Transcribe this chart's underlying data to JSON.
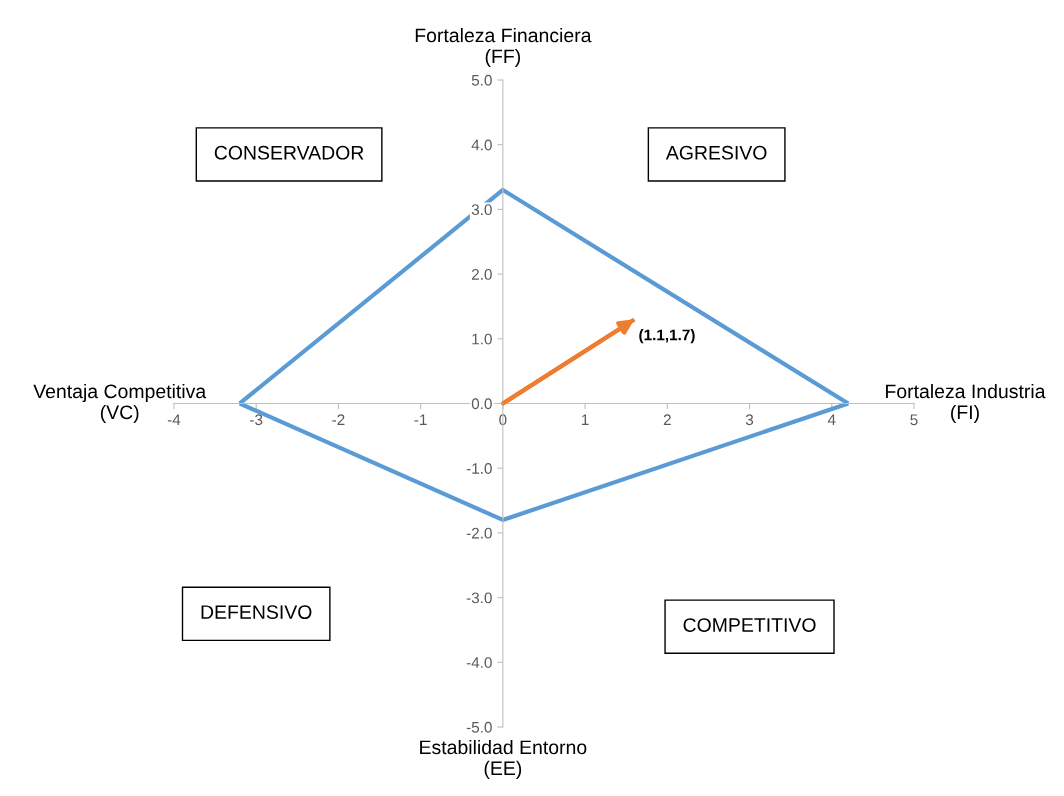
{
  "chart_data": {
    "type": "line",
    "xlabel": "Fortaleza Industria\n(FI)",
    "ylabel": "Fortaleza Financiera\n(FF)",
    "annotations": [
      "Ventaja Competitiva\n(VC)",
      "Estabilidad Entorno\n(EE)",
      "CONSERVADOR",
      "AGRESIVO",
      "DEFENSIVO",
      "COMPETITIVO",
      {
        "text": "(1.1,1.7)",
        "x": 1.6,
        "y": 1.3
      }
    ],
    "series": [
      {
        "color": "#5b9bd5",
        "x": [
          -3.2,
          0,
          4.2
        ],
        "values": [
          0,
          3.3,
          0
        ]
      },
      {
        "color": "#5b9bd5",
        "x": [
          -3.2,
          0,
          4.2
        ],
        "values": [
          0,
          -1.8,
          0
        ]
      },
      {
        "color": "#ed7d31",
        "x": [
          0,
          1.6
        ],
        "values": [
          0,
          1.3
        ]
      }
    ],
    "xlim": [
      -4,
      5
    ],
    "xticks": [
      -4,
      -3,
      -2,
      -1,
      0,
      1,
      2,
      3,
      4,
      5
    ],
    "ylim": [
      -5,
      5
    ],
    "yticks": [
      {
        "value": -5,
        "label": "-5.0"
      },
      {
        "value": -4,
        "label": "-4.0"
      },
      {
        "value": -3,
        "label": "-3.0"
      },
      {
        "value": -2,
        "label": "-2.0"
      },
      {
        "value": -1,
        "label": "-1.0"
      },
      {
        "value": 0,
        "label": "0.0"
      },
      {
        "value": 1,
        "label": "1.0"
      },
      {
        "value": 2,
        "label": "2.0"
      },
      {
        "value": 3,
        "label": "3.0"
      },
      {
        "value": 4,
        "label": "4.0"
      },
      {
        "value": 5,
        "label": "5.0"
      }
    ],
    "grid": false,
    "legend": false,
    "marker": "none",
    "line_style": "solid"
  }
}
